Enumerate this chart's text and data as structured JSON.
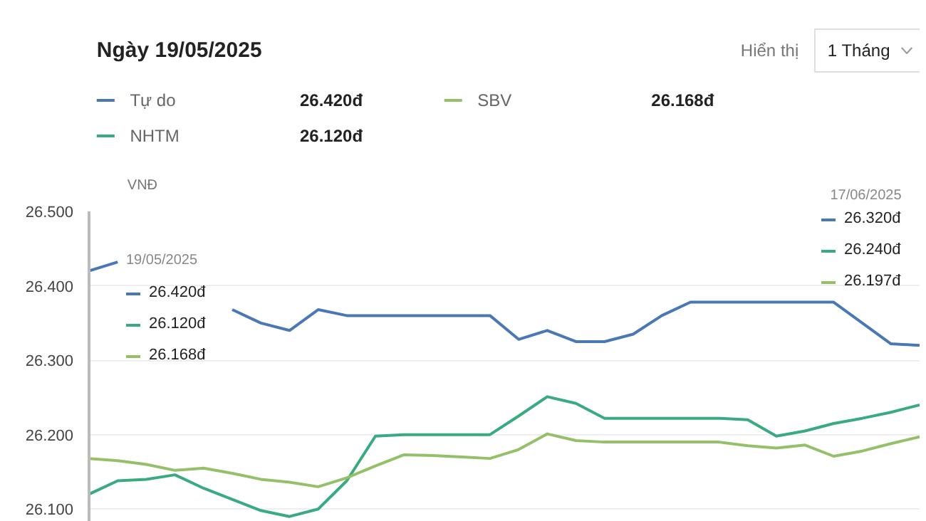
{
  "chart_data": {
    "type": "line",
    "title": "Ngày 19/05/2025",
    "ylabel": "VNĐ",
    "categories": [
      null,
      null,
      null,
      null,
      null,
      null,
      null,
      null,
      null,
      null,
      null,
      null,
      null,
      null,
      null,
      null,
      null,
      null,
      null,
      null,
      null,
      null,
      null,
      null,
      null,
      null,
      null,
      null,
      null,
      null
    ],
    "series": [
      {
        "name": "Tự do",
        "color": "#4a78b5",
        "values": [
          26420,
          26432,
          null,
          null,
          null,
          26368,
          26350,
          26340,
          26368,
          26360,
          26360,
          26360,
          26360,
          26360,
          26360,
          26328,
          26340,
          26325,
          26325,
          26335,
          26360,
          26378,
          26378,
          26378,
          26378,
          26378,
          26378,
          26350,
          26322,
          26320
        ]
      },
      {
        "name": "NHTM",
        "color": "#3aaa80",
        "values": [
          26120,
          26138,
          26140,
          26146,
          26128,
          26113,
          26098,
          26090,
          26100,
          26138,
          26198,
          26200,
          26200,
          26200,
          26200,
          26225,
          26251,
          26242,
          26222,
          26222,
          26222,
          26222,
          26222,
          26220,
          26198,
          26205,
          26215,
          26222,
          26230,
          26240
        ]
      },
      {
        "name": "SBV",
        "color": "#95c06a",
        "values": [
          26168,
          26165,
          26160,
          26152,
          26155,
          26148,
          26140,
          26136,
          26130,
          26142,
          26158,
          26173,
          26172,
          26170,
          26168,
          26180,
          26201,
          26192,
          26190,
          26190,
          26190,
          26190,
          26190,
          26185,
          26182,
          26186,
          26171,
          26178,
          26188,
          26197
        ]
      }
    ],
    "ylim": [
      26083,
      26500
    ],
    "yticks": [
      {
        "value": 26100,
        "label": "26.100"
      },
      {
        "value": 26200,
        "label": "26.200"
      },
      {
        "value": 26300,
        "label": "26.300"
      },
      {
        "value": 26400,
        "label": "26.400"
      },
      {
        "value": 26500,
        "label": "26.500"
      }
    ],
    "grid": "y",
    "legend": "top",
    "marker": "none",
    "line_style": "solid",
    "tick_labels": "y",
    "annotations": [
      "Hiển thị",
      "1 Tháng",
      "26.420đ",
      "26.120đ",
      "26.168đ",
      "19/05/2025",
      "26.420đ",
      "26.120đ",
      "26.168đ",
      "17/06/2025",
      "26.320đ",
      "26.240đ",
      "26.197đ"
    ]
  }
}
